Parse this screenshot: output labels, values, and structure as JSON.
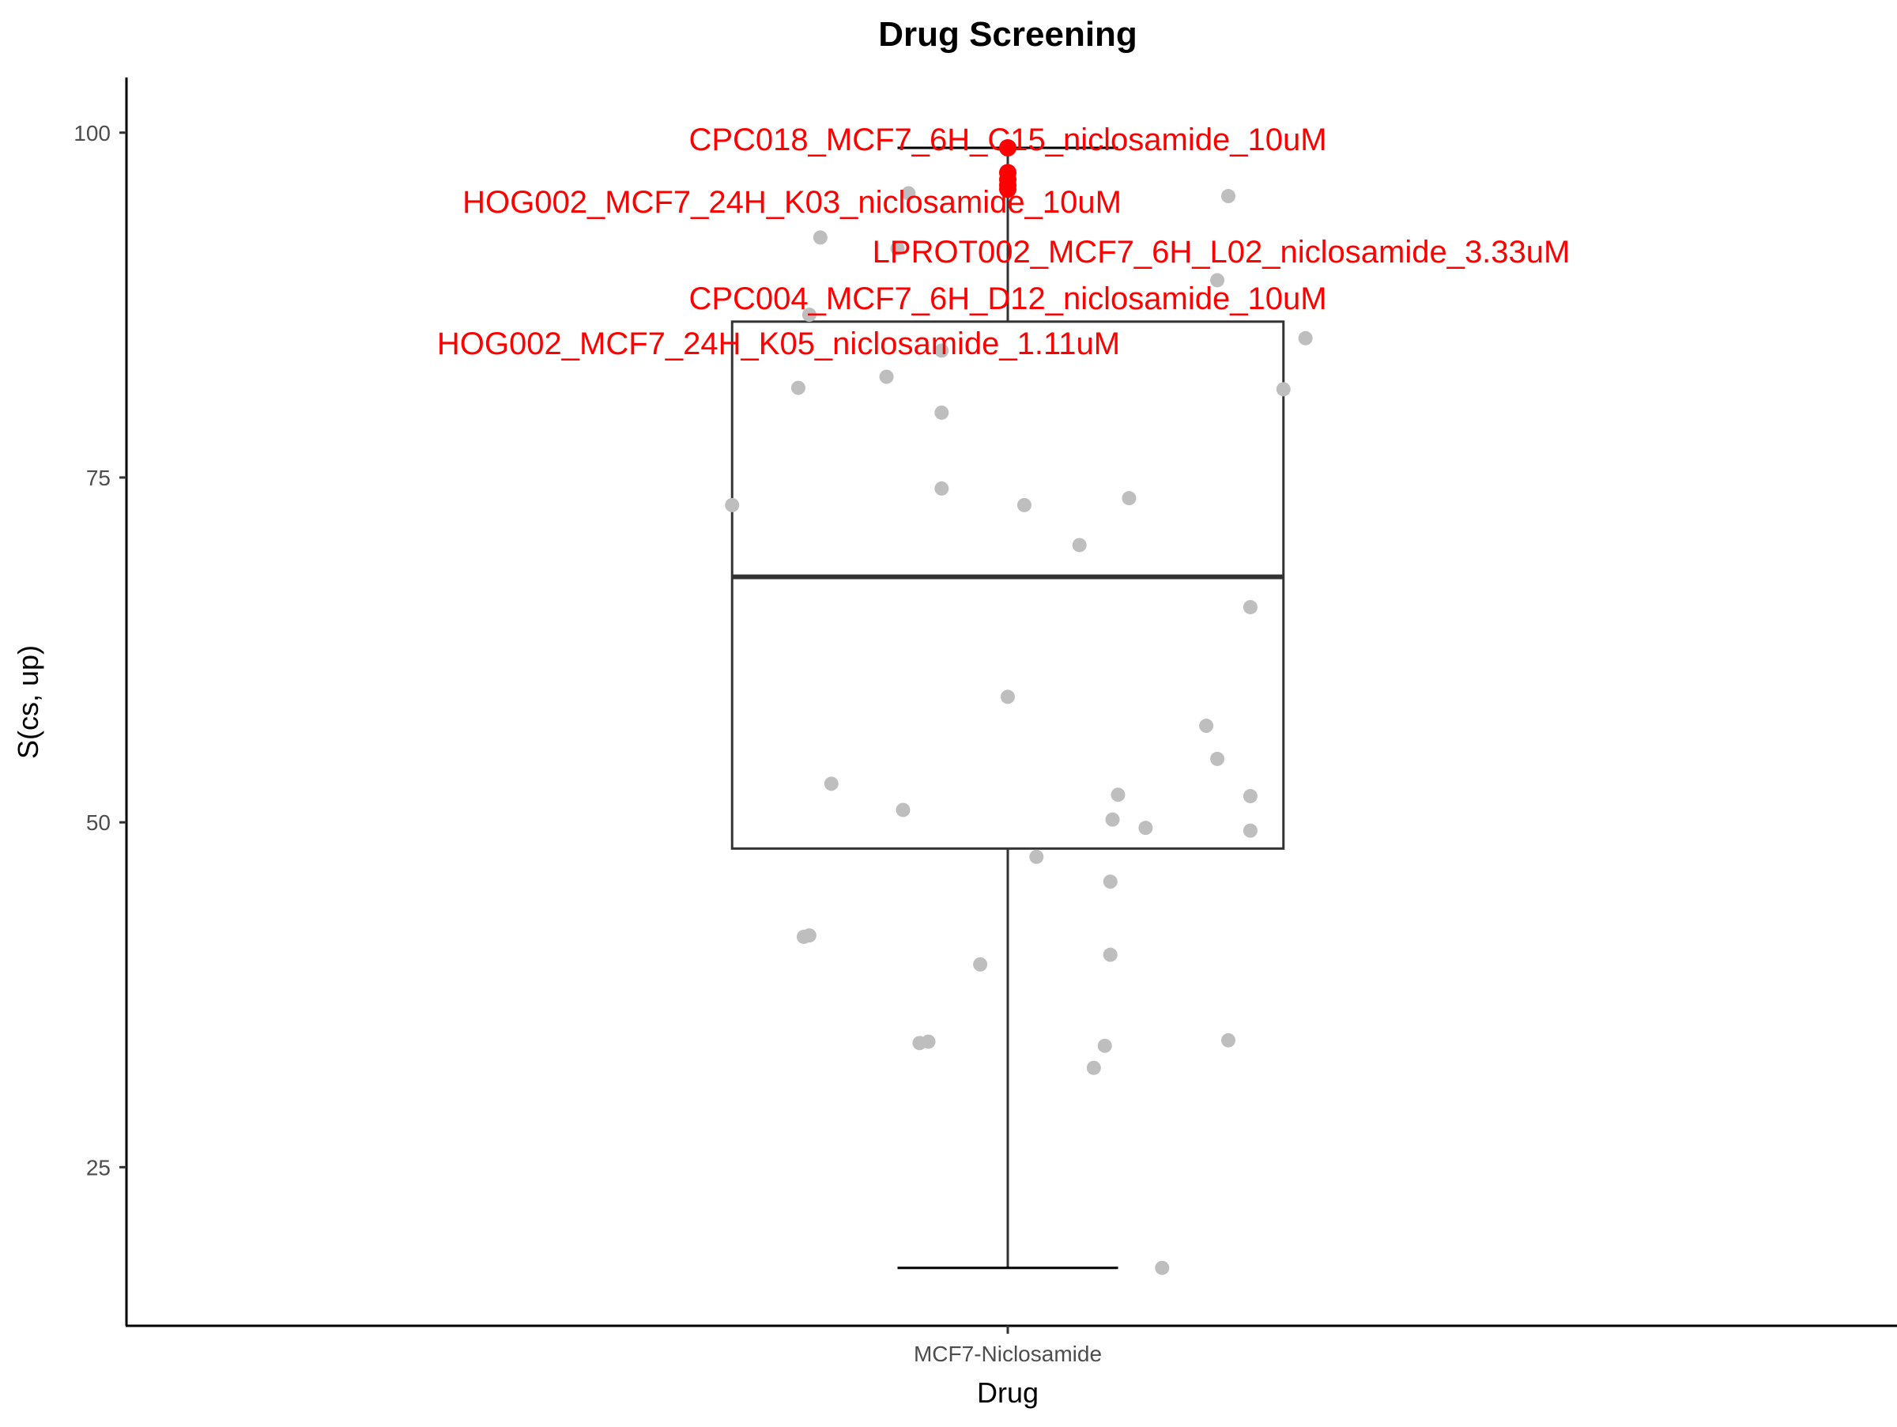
{
  "chart_data": {
    "type": "scatter",
    "subtype": "boxplot-with-jitter",
    "title": "Drug Screening",
    "xlabel": "Drug",
    "ylabel": "S(cs, up)",
    "categories": [
      "MCF7-Niclosamide"
    ],
    "ylim": [
      13.5,
      104
    ],
    "yticks": [
      25,
      50,
      75,
      100
    ],
    "grid": false,
    "legend": "none",
    "colors": {
      "points": "#bebebe",
      "highlight": "#ff0000",
      "box": "#333333",
      "axis": "#000000"
    },
    "box": {
      "category": "MCF7-Niclosamide",
      "q1": 48.1,
      "median": 67.8,
      "q3": 86.3,
      "whisker_low": 17.7,
      "whisker_high": 98.9
    },
    "points": [
      {
        "dx": -0.09,
        "y": 95.6
      },
      {
        "dx": 0.2,
        "y": 95.4
      },
      {
        "dx": -0.17,
        "y": 92.4
      },
      {
        "dx": -0.1,
        "y": 91.6
      },
      {
        "dx": 0.19,
        "y": 89.3
      },
      {
        "dx": -0.18,
        "y": 86.8
      },
      {
        "dx": -0.06,
        "y": 84.2
      },
      {
        "dx": 0.27,
        "y": 85.1
      },
      {
        "dx": -0.19,
        "y": 81.5
      },
      {
        "dx": -0.11,
        "y": 82.3
      },
      {
        "dx": 0.25,
        "y": 81.4
      },
      {
        "dx": -0.06,
        "y": 79.7
      },
      {
        "dx": -0.25,
        "y": 73.0
      },
      {
        "dx": -0.06,
        "y": 74.2
      },
      {
        "dx": 0.015,
        "y": 73.0
      },
      {
        "dx": 0.11,
        "y": 73.5
      },
      {
        "dx": 0.065,
        "y": 70.1
      },
      {
        "dx": 0.22,
        "y": 65.6
      },
      {
        "dx": 0.0,
        "y": 59.1
      },
      {
        "dx": 0.18,
        "y": 57.0
      },
      {
        "dx": 0.19,
        "y": 54.6
      },
      {
        "dx": -0.16,
        "y": 52.8
      },
      {
        "dx": -0.095,
        "y": 50.9
      },
      {
        "dx": 0.1,
        "y": 52.0
      },
      {
        "dx": 0.22,
        "y": 51.9
      },
      {
        "dx": 0.095,
        "y": 50.2
      },
      {
        "dx": 0.125,
        "y": 49.6
      },
      {
        "dx": 0.22,
        "y": 49.4
      },
      {
        "dx": 0.026,
        "y": 47.5
      },
      {
        "dx": 0.093,
        "y": 45.7
      },
      {
        "dx": -0.185,
        "y": 41.7
      },
      {
        "dx": -0.18,
        "y": 41.8
      },
      {
        "dx": 0.093,
        "y": 40.4
      },
      {
        "dx": -0.025,
        "y": 39.7
      },
      {
        "dx": -0.08,
        "y": 34.0
      },
      {
        "dx": -0.072,
        "y": 34.1
      },
      {
        "dx": 0.088,
        "y": 33.8
      },
      {
        "dx": 0.2,
        "y": 34.2
      },
      {
        "dx": 0.078,
        "y": 32.2
      },
      {
        "dx": 0.14,
        "y": 17.7
      }
    ],
    "highlighted": [
      {
        "name": "CPC018_MCF7_6H_C15_niclosamide_10uM",
        "dx": 0.0,
        "y": 98.9
      },
      {
        "name": "HOG002_MCF7_24H_K03_niclosamide_10uM",
        "dx": 0.0,
        "y": 97.1
      },
      {
        "name": "LPROT002_MCF7_6H_L02_niclosamide_3.33uM",
        "dx": 0.0,
        "y": 96.6
      },
      {
        "name": "CPC004_MCF7_6H_D12_niclosamide_10uM",
        "dx": 0.0,
        "y": 96.2
      },
      {
        "name": "HOG002_MCF7_24H_K05_niclosamide_1.11uM",
        "dx": 0.0,
        "y": 95.9
      }
    ]
  }
}
